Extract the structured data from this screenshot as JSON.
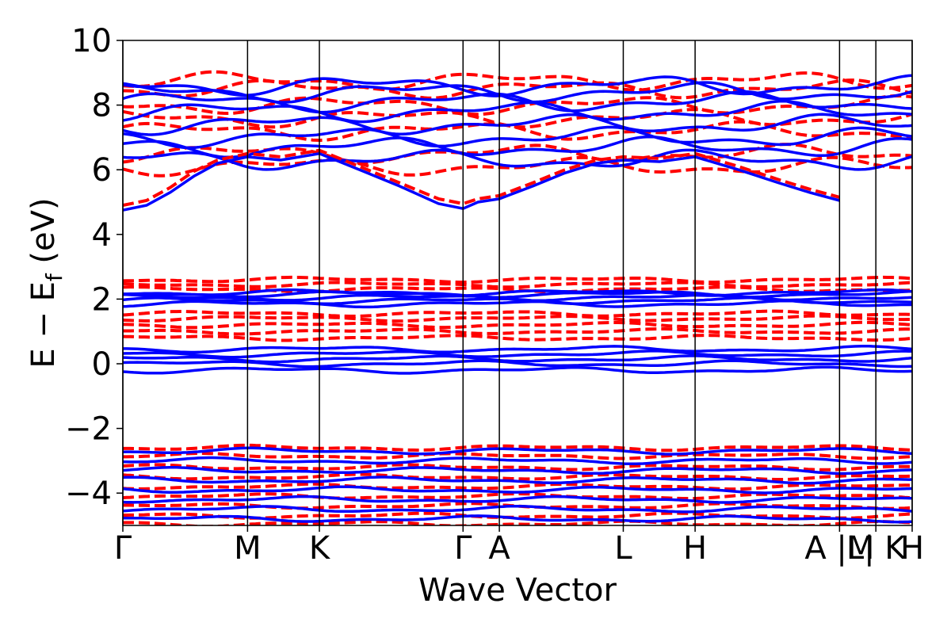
{
  "chart_data": {
    "type": "line",
    "title": "",
    "xlabel": "Wave Vector",
    "ylabel": "E − E",
    "ylabel_subscript": "f",
    "ylabel_unit": " (eV)",
    "ylim": [
      -5,
      10
    ],
    "xlim": [
      0,
      1
    ],
    "yticks": [
      -4,
      -2,
      0,
      2,
      4,
      6,
      8,
      10
    ],
    "ytick_labels": [
      "−4",
      "−2",
      "0",
      "2",
      "4",
      "6",
      "8",
      "10"
    ],
    "kpoints": [
      {
        "label": "Γ",
        "x": 0.0
      },
      {
        "label": "M",
        "x": 0.158
      },
      {
        "label": "K",
        "x": 0.249
      },
      {
        "label": "Γ",
        "x": 0.431
      },
      {
        "label": "A",
        "x": 0.477
      },
      {
        "label": "L",
        "x": 0.634
      },
      {
        "label": "H",
        "x": 0.725
      },
      {
        "label": "A |M",
        "x": 0.908
      },
      {
        "label": "L| K",
        "x": 0.954
      },
      {
        "label": "H",
        "x": 1.0
      }
    ],
    "series": [
      {
        "style": "solid",
        "color": "#0000ff"
      },
      {
        "style": "dashed",
        "color": "#ff0000"
      }
    ],
    "blue_conduction_points": [
      [
        0.0,
        4.75
      ],
      [
        0.03,
        4.9
      ],
      [
        0.06,
        5.3
      ],
      [
        0.09,
        5.8
      ],
      [
        0.12,
        6.2
      ],
      [
        0.158,
        6.4
      ],
      [
        0.2,
        6.3
      ],
      [
        0.249,
        6.5
      ],
      [
        0.3,
        6.0
      ],
      [
        0.35,
        5.5
      ],
      [
        0.4,
        4.95
      ],
      [
        0.431,
        4.8
      ],
      [
        0.45,
        5.0
      ],
      [
        0.477,
        5.1
      ],
      [
        0.52,
        5.5
      ],
      [
        0.56,
        5.9
      ],
      [
        0.6,
        6.2
      ],
      [
        0.634,
        6.3
      ],
      [
        0.68,
        6.25
      ],
      [
        0.725,
        6.4
      ],
      [
        0.78,
        6.0
      ],
      [
        0.83,
        5.6
      ],
      [
        0.87,
        5.3
      ],
      [
        0.908,
        5.05
      ]
    ],
    "red_conduction_points": [
      [
        0.0,
        4.9
      ],
      [
        0.03,
        5.05
      ],
      [
        0.06,
        5.45
      ],
      [
        0.09,
        5.95
      ],
      [
        0.12,
        6.3
      ],
      [
        0.158,
        6.5
      ],
      [
        0.2,
        6.4
      ],
      [
        0.249,
        6.6
      ],
      [
        0.3,
        6.1
      ],
      [
        0.35,
        5.6
      ],
      [
        0.4,
        5.1
      ],
      [
        0.431,
        4.95
      ],
      [
        0.45,
        5.1
      ],
      [
        0.477,
        5.2
      ],
      [
        0.52,
        5.6
      ],
      [
        0.56,
        6.0
      ],
      [
        0.6,
        6.3
      ],
      [
        0.634,
        6.4
      ],
      [
        0.68,
        6.35
      ],
      [
        0.725,
        6.5
      ],
      [
        0.78,
        6.1
      ],
      [
        0.83,
        5.7
      ],
      [
        0.87,
        5.4
      ],
      [
        0.908,
        5.15
      ]
    ],
    "blue_bands": [
      {
        "y": 0.0
      },
      {
        "y": 0.15
      },
      {
        "y": 0.3
      },
      {
        "y": 0.45
      },
      {
        "y": -0.2
      },
      {
        "y": 1.85
      },
      {
        "y": 1.95
      },
      {
        "y": 2.05
      },
      {
        "y": 2.15
      },
      {
        "y": 2.2
      },
      {
        "y": -2.7
      },
      {
        "y": -3.0
      },
      {
        "y": -3.3
      },
      {
        "y": -3.6
      },
      {
        "y": -3.9
      },
      {
        "y": -4.2
      },
      {
        "y": -4.5
      },
      {
        "y": -4.8
      },
      {
        "y": 6.3
      },
      {
        "y": 6.7
      },
      {
        "y": 7.0
      },
      {
        "y": 7.4
      },
      {
        "y": 7.8
      },
      {
        "y": 8.1
      },
      {
        "y": 8.4
      },
      {
        "y": 8.6
      }
    ],
    "red_bands": [
      {
        "y": 0.8
      },
      {
        "y": 1.0
      },
      {
        "y": 1.2
      },
      {
        "y": 1.4
      },
      {
        "y": 1.55
      },
      {
        "y": 2.3
      },
      {
        "y": 2.45
      },
      {
        "y": 2.6
      },
      {
        "y": -2.6
      },
      {
        "y": -2.85
      },
      {
        "y": -3.2
      },
      {
        "y": -3.5
      },
      {
        "y": -3.8
      },
      {
        "y": -4.1
      },
      {
        "y": -4.4
      },
      {
        "y": -4.7
      },
      {
        "y": -4.95
      },
      {
        "y": 6.1
      },
      {
        "y": 6.5
      },
      {
        "y": 7.2
      },
      {
        "y": 7.6
      },
      {
        "y": 8.0
      },
      {
        "y": 8.5
      },
      {
        "y": 8.75
      }
    ],
    "grid": false,
    "legend": "none"
  }
}
